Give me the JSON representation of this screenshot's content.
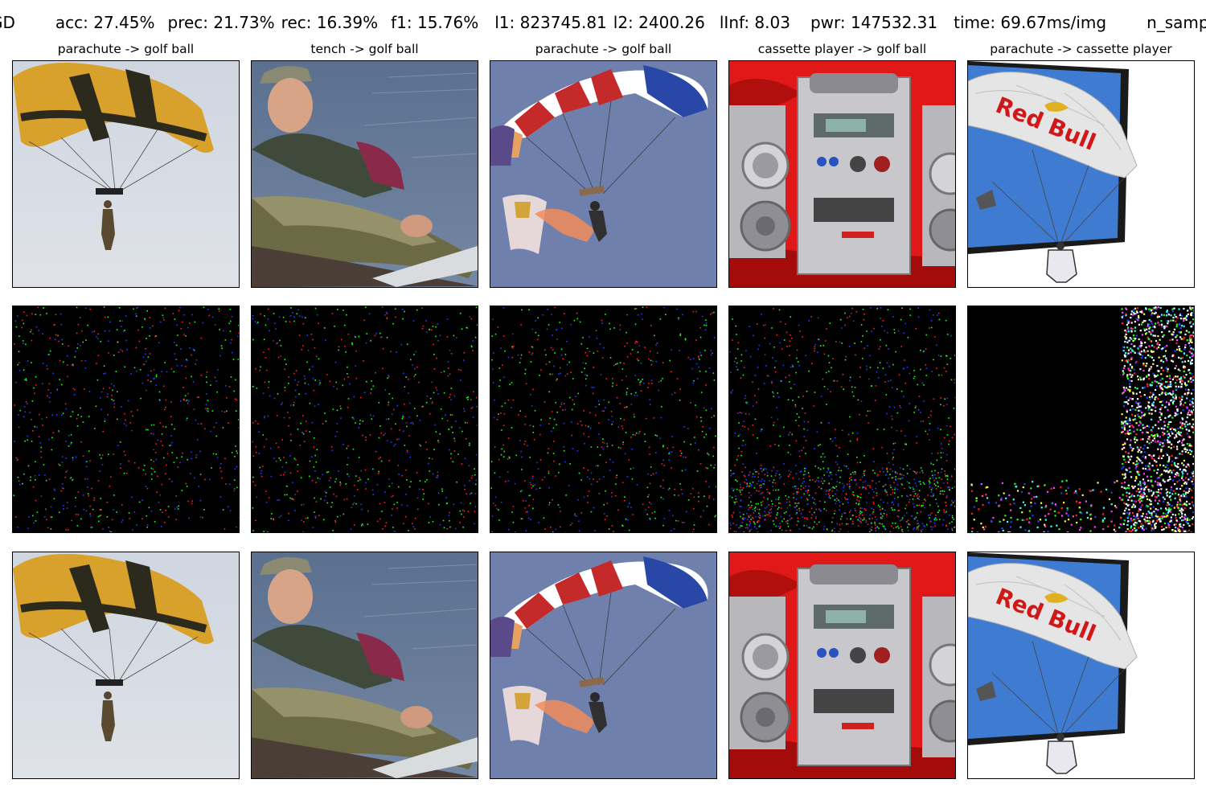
{
  "header": {
    "method": "GD",
    "acc": "acc: 27.45%",
    "prec": "prec: 21.73%",
    "rec": "rec: 16.39%",
    "f1": "f1: 15.76%",
    "l1": "l1: 823745.81",
    "l2": "l2: 2400.26",
    "linf": "lInf: 8.03",
    "pwr": "pwr: 147532.31",
    "time": "time: 69.67ms/img",
    "n_samples": "n_samples:"
  },
  "columns": [
    {
      "title": "parachute -> golf ball",
      "subject": "yellow-black-parachute-skydiver"
    },
    {
      "title": "tench -> golf ball",
      "subject": "man-holding-pike-fish"
    },
    {
      "title": "parachute -> golf ball",
      "subject": "striped-parachute-with-flare"
    },
    {
      "title": "cassette player -> golf ball",
      "subject": "silver-stereo-on-red-cloth"
    },
    {
      "title": "parachute -> cassette player",
      "subject": "red-bull-parachute-from-screen"
    }
  ],
  "rows": [
    "original",
    "perturbation",
    "adversarial"
  ],
  "colors": {
    "background": "#ffffff",
    "noise_background": "#000000",
    "noise_red": "#ff2020",
    "noise_green": "#20ff20",
    "noise_blue": "#2040ff"
  }
}
